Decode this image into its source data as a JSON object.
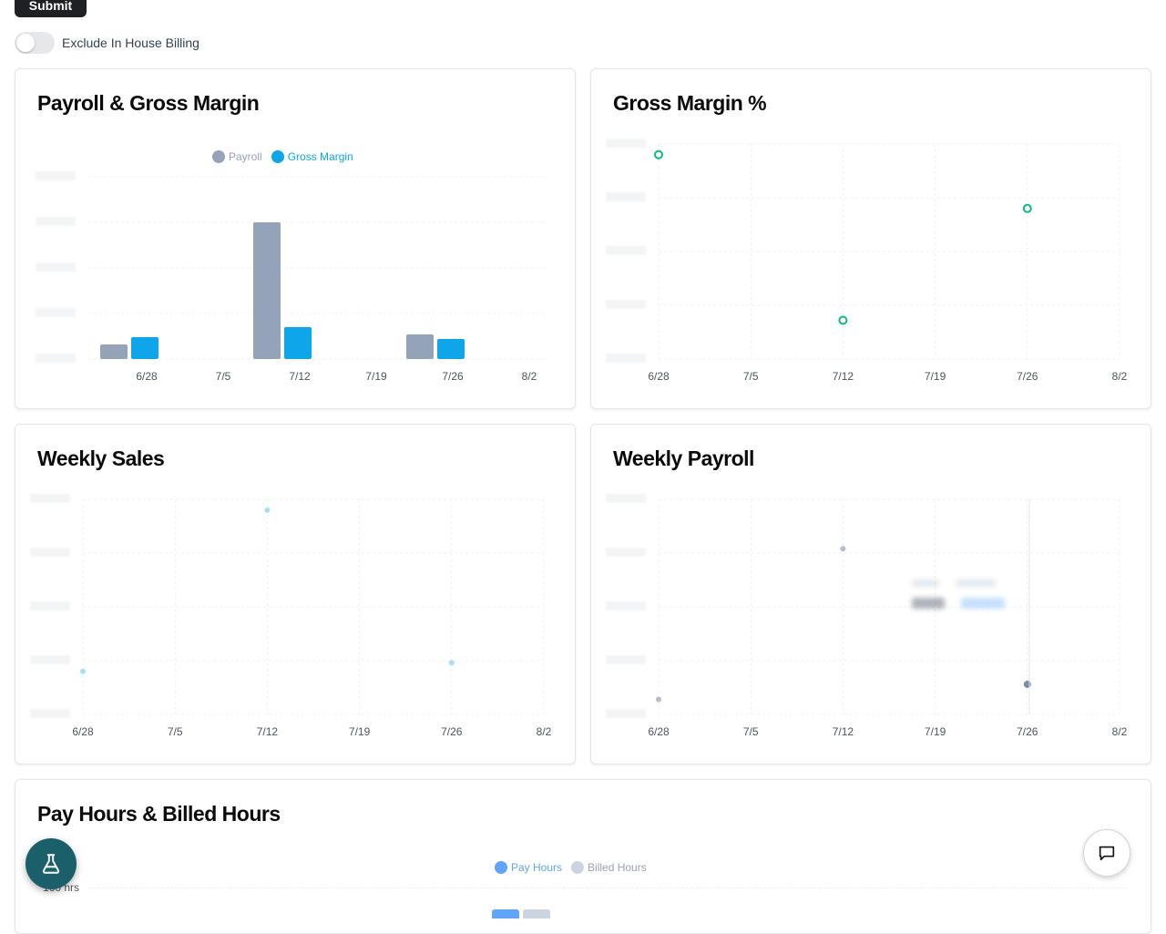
{
  "controls": {
    "submit_label": "Submit",
    "exclude_label": "Exclude In House Billing",
    "exclude_on": false
  },
  "cards": {
    "payroll_gm": {
      "title": "Payroll & Gross Margin",
      "legend": [
        {
          "label": "Payroll",
          "color": "#94a3b8"
        },
        {
          "label": "Gross Margin",
          "color": "#0ea5e9"
        }
      ]
    },
    "gm_pct": {
      "title": "Gross Margin %"
    },
    "weekly_sales": {
      "title": "Weekly Sales"
    },
    "weekly_payroll": {
      "title": "Weekly Payroll"
    },
    "hours": {
      "title": "Pay Hours & Billed Hours",
      "legend": [
        {
          "label": "Pay Hours",
          "color": "#60a5fa"
        },
        {
          "label": "Billed Hours",
          "color": "#cbd5e1"
        }
      ],
      "ytick_top": "160 hrs"
    }
  },
  "chart_data": [
    {
      "type": "bar",
      "title": "Payroll & Gross Margin",
      "categories": [
        "6/28",
        "7/5",
        "7/12",
        "7/19",
        "7/26",
        "8/2"
      ],
      "series": [
        {
          "name": "Payroll",
          "values": [
            16,
            null,
            150,
            null,
            27,
            null
          ]
        },
        {
          "name": "Gross Margin",
          "values": [
            24,
            null,
            35,
            null,
            22,
            null
          ]
        }
      ],
      "ylim": [
        0,
        200
      ],
      "colors": {
        "Payroll": "#94a3b8",
        "Gross Margin": "#0ea5e9"
      }
    },
    {
      "type": "scatter",
      "title": "Gross Margin %",
      "x": [
        "6/28",
        "7/5",
        "7/12",
        "7/19",
        "7/26",
        "8/2"
      ],
      "values": [
        0.95,
        null,
        0.18,
        null,
        0.7,
        null
      ],
      "ylim": [
        0,
        1
      ],
      "color": "#10b981"
    },
    {
      "type": "scatter",
      "title": "Weekly Sales",
      "x": [
        "6/28",
        "7/5",
        "7/12",
        "7/19",
        "7/26",
        "8/2"
      ],
      "values": [
        0.2,
        null,
        0.95,
        null,
        0.24,
        null
      ],
      "ylim": [
        0,
        1
      ],
      "color": "#7dd3fc"
    },
    {
      "type": "scatter",
      "title": "Weekly Payroll",
      "x": [
        "6/28",
        "7/5",
        "7/12",
        "7/19",
        "7/26",
        "8/2"
      ],
      "values": [
        0.07,
        null,
        0.77,
        null,
        0.14,
        null
      ],
      "ylim": [
        0,
        1
      ],
      "color": "#94a3b8",
      "highlight_index": 4
    }
  ]
}
